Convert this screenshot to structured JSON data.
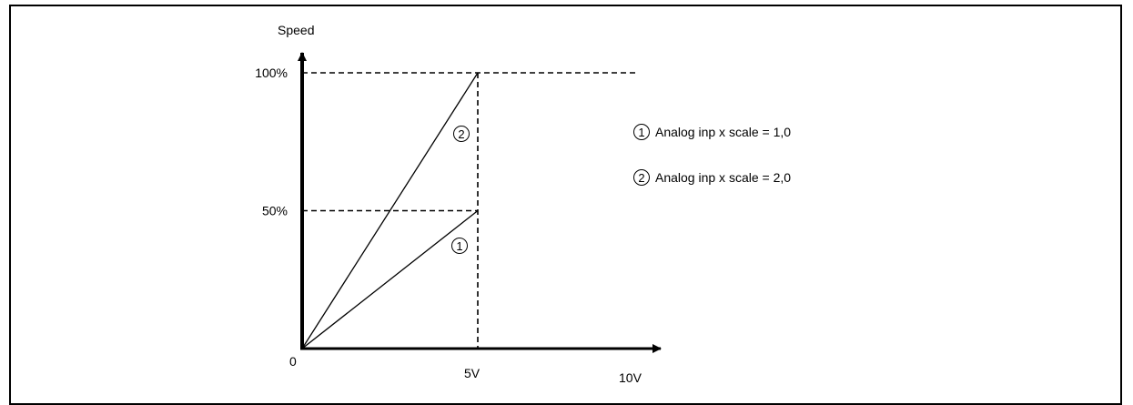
{
  "chart_data": {
    "type": "line",
    "ylabel": "Speed",
    "origin_label": "0",
    "x_ticks": [
      {
        "value": 5,
        "label": "5V"
      },
      {
        "value": 10,
        "label": "10V"
      }
    ],
    "y_ticks": [
      {
        "value": 50,
        "label": "50%"
      },
      {
        "value": 100,
        "label": "100%"
      }
    ],
    "xlim": [
      0,
      10
    ],
    "ylim": [
      0,
      100
    ],
    "series": [
      {
        "marker": "1",
        "x": [
          0,
          5
        ],
        "y": [
          0,
          50
        ]
      },
      {
        "marker": "2",
        "x": [
          0,
          5
        ],
        "y": [
          0,
          100
        ]
      }
    ],
    "legend": [
      {
        "marker": "1",
        "label": "Analog inp x scale = 1,0"
      },
      {
        "marker": "2",
        "label": "Analog inp x scale = 2,0"
      }
    ],
    "legend_position": "right",
    "colors": {
      "line": "#000000",
      "background": "#ffffff"
    }
  }
}
